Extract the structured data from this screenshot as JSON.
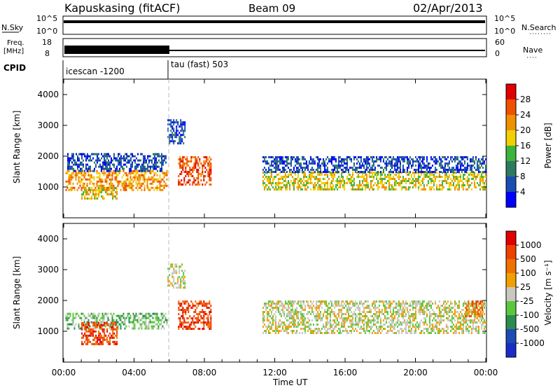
{
  "header": {
    "station": "Kapuskasing (fitACF)",
    "beam": "Beam 09",
    "date": "02/Apr/2013"
  },
  "strip": {
    "nsky_label": "N.Sky",
    "nsearch_label": "N.Search",
    "nsky_ticks": [
      "10^5",
      "10^0"
    ],
    "nsearch_ticks": [
      "10^5",
      "10^0"
    ],
    "freq_label_1": "Freq.",
    "freq_label_2": "[MHz]",
    "freq_ticks": [
      "18",
      "8"
    ],
    "nave_label": "Nave",
    "nave_ticks": [
      "60",
      "0"
    ],
    "cpid_label": "CPID",
    "cpid_segments": [
      {
        "label": "icescan -1200",
        "start_hour": 0,
        "end_hour": 6
      },
      {
        "label": "tau (fast) 503",
        "start_hour": 6,
        "end_hour": 24
      }
    ]
  },
  "chart_data": [
    {
      "type": "heatmap",
      "panel": "power",
      "ylabel": "Slant Range [km]",
      "ylim": [
        0,
        4500
      ],
      "yticks": [
        1000,
        2000,
        3000,
        4000
      ],
      "xlim": [
        0,
        24
      ],
      "colorbar": {
        "label": "Power [dB]",
        "ticks": [
          "4",
          "8",
          "12",
          "16",
          "20",
          "24",
          "28"
        ],
        "colors": [
          "#0000ff",
          "#1a4cb4",
          "#2d7a60",
          "#3cb43c",
          "#f0d000",
          "#f09000",
          "#f05000",
          "#e00000"
        ]
      },
      "echo_regions": [
        {
          "t0": 0.1,
          "t1": 5.9,
          "r0": 900,
          "r1": 1550,
          "level": 5
        },
        {
          "t0": 0.2,
          "t1": 5.8,
          "r0": 1550,
          "r1": 2100,
          "level": 1
        },
        {
          "t0": 1.0,
          "t1": 3.0,
          "r0": 600,
          "r1": 1000,
          "level": 4
        },
        {
          "t0": 6.5,
          "t1": 8.4,
          "r0": 1100,
          "r1": 2000,
          "level": 6
        },
        {
          "t0": 5.9,
          "t1": 6.9,
          "r0": 2400,
          "r1": 3200,
          "level": 1
        },
        {
          "t0": 11.3,
          "t1": 24.0,
          "r0": 950,
          "r1": 1500,
          "level": 4
        },
        {
          "t0": 11.3,
          "t1": 24.0,
          "r0": 1500,
          "r1": 2000,
          "level": 1
        }
      ]
    },
    {
      "type": "heatmap",
      "panel": "velocity",
      "ylabel": "Slant Range [km]",
      "ylim": [
        0,
        4500
      ],
      "yticks": [
        1000,
        2000,
        3000,
        4000
      ],
      "xlim": [
        0,
        24
      ],
      "xticks": [
        "00:00",
        "04:00",
        "08:00",
        "12:00",
        "16:00",
        "20:00",
        "00:00"
      ],
      "xlabel": "Time UT",
      "colorbar": {
        "label": "Velocity [m s⁻¹]",
        "ticks": [
          "1000",
          "500",
          "100",
          "25",
          "-25",
          "-100",
          "-500",
          "-1000"
        ],
        "colors": [
          "#1a2cc8",
          "#1a4cb4",
          "#2d8a50",
          "#5ac83c",
          "#c8c8c0",
          "#f0a000",
          "#f07000",
          "#f04000",
          "#e00000"
        ]
      },
      "echo_regions": [
        {
          "t0": 0.1,
          "t1": 5.9,
          "r0": 1100,
          "r1": 1600,
          "level": 3
        },
        {
          "t0": 1.0,
          "t1": 3.0,
          "r0": 600,
          "r1": 1300,
          "level": 7
        },
        {
          "t0": 6.5,
          "t1": 8.4,
          "r0": 1100,
          "r1": 2000,
          "level": 7
        },
        {
          "t0": 5.9,
          "t1": 6.9,
          "r0": 2400,
          "r1": 3200,
          "level": 4
        },
        {
          "t0": 11.3,
          "t1": 24.0,
          "r0": 950,
          "r1": 2000,
          "level": 4
        },
        {
          "t0": 22.8,
          "t1": 23.8,
          "r0": 1500,
          "r1": 2000,
          "level": 6
        }
      ]
    }
  ]
}
